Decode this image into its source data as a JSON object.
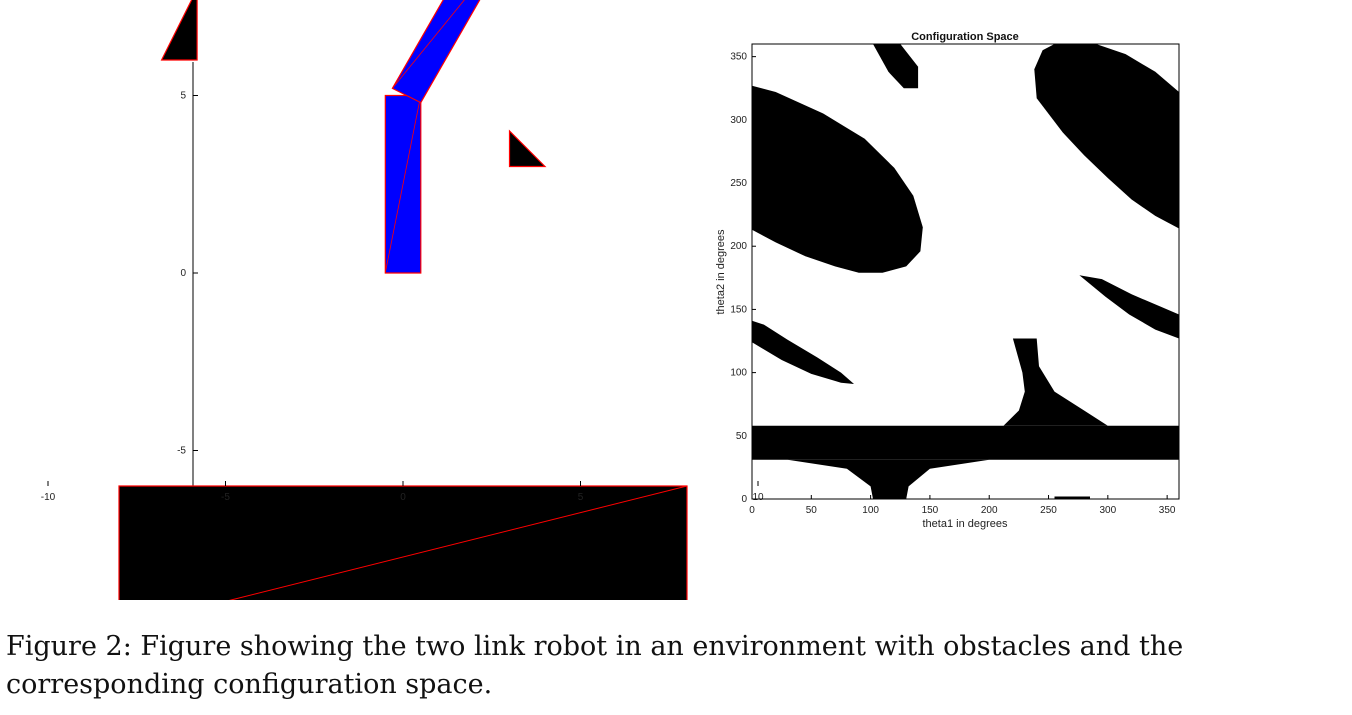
{
  "figure": {
    "caption": "Figure 2: Figure showing the two link robot in an environment with obstacles and the corresponding configuration space."
  },
  "chart_data": [
    {
      "type": "diagram",
      "title": "",
      "xlabel": "",
      "ylabel": "",
      "xlim": [
        -12,
        12
      ],
      "ylim": [
        -12,
        12
      ],
      "xticks": [
        -10,
        -5,
        0,
        5,
        10
      ],
      "yticks": [
        -10,
        -5,
        0,
        5,
        10
      ],
      "colors": {
        "obstacle": "#000000",
        "robot": "#0000ff",
        "edge": "#ff0000"
      },
      "obstacles": [
        {
          "name": "triangle-obstacle-upper-left",
          "points": [
            [
              -6.8,
              6
            ],
            [
              -5.8,
              6
            ],
            [
              -5.8,
              8
            ]
          ]
        },
        {
          "name": "triangle-obstacle-right",
          "points": [
            [
              3,
              3
            ],
            [
              4,
              3
            ],
            [
              3,
              4
            ]
          ]
        },
        {
          "name": "rectangle-obstacle",
          "points": [
            [
              -8,
              -10
            ],
            [
              8,
              -10
            ],
            [
              8,
              -6
            ],
            [
              -8,
              -6
            ]
          ]
        }
      ],
      "robot_links": [
        {
          "name": "robot-link-1",
          "points": [
            [
              -0.5,
              0
            ],
            [
              0.5,
              0
            ],
            [
              0.5,
              5
            ],
            [
              -0.5,
              5
            ]
          ]
        },
        {
          "name": "robot-link-2",
          "points": [
            [
              -0.3,
              5.2
            ],
            [
              0.5,
              4.8
            ],
            [
              3.2,
              9.5
            ],
            [
              2.4,
              9.9
            ]
          ]
        },
        {
          "name": "robot-gripper-left",
          "points": [
            [
              2.0,
              9.7
            ],
            [
              2.4,
              10.6
            ],
            [
              3.0,
              9.6
            ]
          ]
        },
        {
          "name": "robot-gripper-right",
          "points": [
            [
              2.8,
              9.4
            ],
            [
              3.7,
              9.8
            ],
            [
              3.2,
              9.0
            ]
          ]
        }
      ]
    },
    {
      "type": "heatmap",
      "title": "Configuration Space",
      "xlabel": "theta1 in degrees",
      "ylabel": "theta2 in degrees",
      "xlim": [
        0,
        360
      ],
      "ylim": [
        0,
        360
      ],
      "xticks": [
        0,
        50,
        100,
        150,
        200,
        250,
        300,
        350
      ],
      "yticks": [
        0,
        50,
        100,
        150,
        200,
        250,
        300,
        350
      ],
      "colors": {
        "free": "#ffffff",
        "occupied": "#000000"
      },
      "regions": [
        {
          "name": "c-obstacle-horizontal-band",
          "points": [
            [
              0,
              31
            ],
            [
              360,
              31
            ],
            [
              360,
              58
            ],
            [
              0,
              58
            ]
          ]
        },
        {
          "name": "c-obstacle-lower-cusp",
          "points": [
            [
              30,
              31
            ],
            [
              80,
              24
            ],
            [
              100,
              10
            ],
            [
              102,
              0
            ],
            [
              130,
              0
            ],
            [
              132,
              10
            ],
            [
              150,
              24
            ],
            [
              200,
              31
            ]
          ]
        },
        {
          "name": "c-obstacle-upper-cusp",
          "points": [
            [
              212,
              58
            ],
            [
              225,
              70
            ],
            [
              230,
              85
            ],
            [
              228,
              100
            ],
            [
              220,
              127
            ],
            [
              240,
              127
            ],
            [
              242,
              105
            ],
            [
              255,
              85
            ],
            [
              280,
              70
            ],
            [
              300,
              58
            ]
          ]
        },
        {
          "name": "c-obstacle-upper-left-ellipse",
          "points": [
            [
              0,
              327
            ],
            [
              20,
              322
            ],
            [
              60,
              305
            ],
            [
              95,
              285
            ],
            [
              120,
              262
            ],
            [
              136,
              240
            ],
            [
              144,
              215
            ],
            [
              142,
              196
            ],
            [
              130,
              184
            ],
            [
              110,
              179
            ],
            [
              90,
              179
            ],
            [
              70,
              184
            ],
            [
              45,
              192
            ],
            [
              20,
              203
            ],
            [
              0,
              213
            ]
          ]
        },
        {
          "name": "c-obstacle-upper-right-ellipse",
          "points": [
            [
              255,
              360
            ],
            [
              290,
              360
            ],
            [
              315,
              352
            ],
            [
              340,
              338
            ],
            [
              360,
              322
            ],
            [
              360,
              214
            ],
            [
              340,
              224
            ],
            [
              320,
              237
            ],
            [
              300,
              254
            ],
            [
              280,
              272
            ],
            [
              262,
              290
            ],
            [
              240,
              317
            ],
            [
              238,
              340
            ],
            [
              245,
              355
            ]
          ]
        },
        {
          "name": "c-obstacle-top-wedge",
          "points": [
            [
              102,
              360
            ],
            [
              125,
              360
            ],
            [
              140,
              342
            ],
            [
              140,
              325
            ],
            [
              128,
              325
            ],
            [
              115,
              338
            ]
          ]
        },
        {
          "name": "c-obstacle-left-streak",
          "points": [
            [
              0,
              141
            ],
            [
              10,
              138
            ],
            [
              30,
              126
            ],
            [
              55,
              112
            ],
            [
              75,
              100
            ],
            [
              86,
              91
            ],
            [
              75,
              92
            ],
            [
              50,
              99
            ],
            [
              25,
              110
            ],
            [
              0,
              124
            ]
          ]
        },
        {
          "name": "c-obstacle-right-streak",
          "points": [
            [
              276,
              177
            ],
            [
              295,
              174
            ],
            [
              320,
              162
            ],
            [
              345,
              152
            ],
            [
              360,
              146
            ],
            [
              360,
              127
            ],
            [
              340,
              134
            ],
            [
              318,
              146
            ],
            [
              298,
              160
            ]
          ]
        },
        {
          "name": "c-obstacle-bottom-sliver",
          "points": [
            [
              255,
              0
            ],
            [
              285,
              0
            ],
            [
              285,
              2
            ],
            [
              255,
              2
            ]
          ]
        }
      ]
    }
  ]
}
